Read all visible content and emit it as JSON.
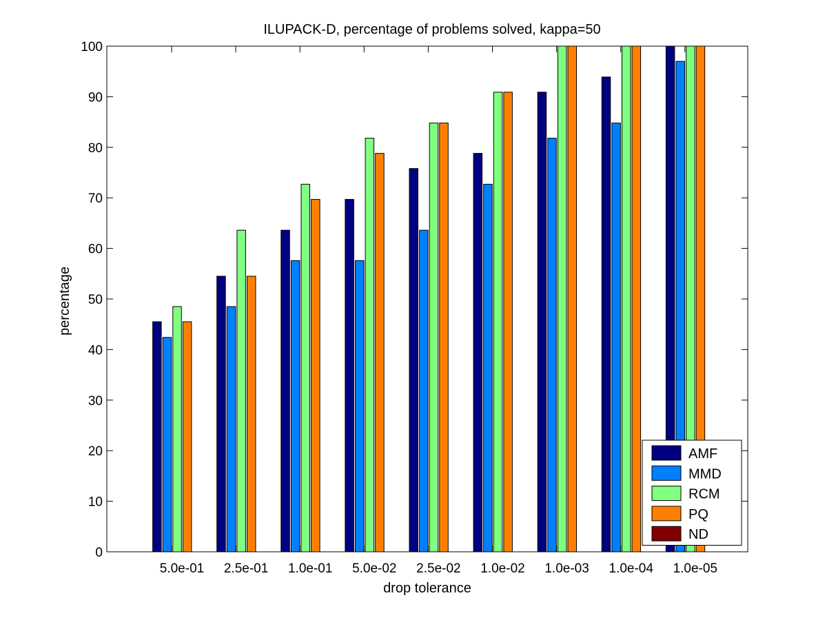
{
  "chart_data": {
    "type": "bar",
    "title": "ILUPACK-D, percentage of problems solved, kappa=50",
    "xlabel": "drop tolerance",
    "ylabel": "percentage",
    "ylim": [
      0,
      100
    ],
    "yticks": [
      0,
      10,
      20,
      30,
      40,
      50,
      60,
      70,
      80,
      90,
      100
    ],
    "categories": [
      "5.0e-01",
      "2.5e-01",
      "1.0e-01",
      "5.0e-02",
      "2.5e-02",
      "1.0e-02",
      "1.0e-03",
      "1.0e-04",
      "1.0e-05"
    ],
    "series": [
      {
        "name": "AMF",
        "color": "#000080",
        "values": [
          45.5,
          54.5,
          63.6,
          69.7,
          75.8,
          78.8,
          90.9,
          93.9,
          100
        ]
      },
      {
        "name": "MMD",
        "color": "#0080ff",
        "values": [
          42.4,
          48.5,
          57.6,
          57.6,
          63.6,
          72.7,
          81.8,
          84.8,
          97.0
        ]
      },
      {
        "name": "RCM",
        "color": "#80ff80",
        "values": [
          48.5,
          63.6,
          72.7,
          81.8,
          84.8,
          90.9,
          100,
          100,
          100
        ]
      },
      {
        "name": "PQ",
        "color": "#ff8000",
        "values": [
          45.5,
          54.5,
          69.7,
          78.8,
          84.8,
          90.9,
          100,
          100,
          100
        ]
      },
      {
        "name": "ND",
        "color": "#800000",
        "values": [
          0,
          0,
          0,
          0,
          0,
          0,
          0,
          0,
          0
        ]
      }
    ],
    "grid": false,
    "legend": "bottom-right"
  }
}
